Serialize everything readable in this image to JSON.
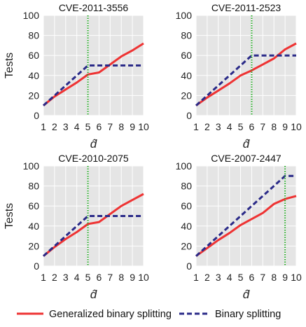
{
  "legend": {
    "placement": "bottom",
    "entries": [
      {
        "label": "Generalized binary splitting",
        "color": "#ee3333",
        "style": "solid"
      },
      {
        "label": "Binary splitting",
        "color": "#2a2a88",
        "style": "dashed"
      }
    ]
  },
  "colors": {
    "plot_background": "#e5e5e5",
    "grid": "#ffffff",
    "vline": "#22aa22"
  },
  "chart_data": [
    {
      "type": "line",
      "title": "CVE-2011-3556",
      "xlabel": "d̂",
      "ylabel": "Tests",
      "x": [
        1,
        2,
        3,
        4,
        5,
        6,
        7,
        8,
        9,
        10
      ],
      "xlim": [
        1,
        10
      ],
      "ylim": [
        0,
        100
      ],
      "yticks": [
        0,
        20,
        40,
        60,
        80,
        100
      ],
      "grid": true,
      "vline_x": 5,
      "series": [
        {
          "name": "Generalized binary splitting",
          "values": [
            10,
            19,
            26,
            33,
            41,
            43,
            51,
            59,
            65,
            72
          ]
        },
        {
          "name": "Binary splitting",
          "values": [
            10,
            20,
            30,
            40,
            50,
            50,
            50,
            50,
            50,
            50
          ]
        }
      ]
    },
    {
      "type": "line",
      "title": "CVE-2011-2523",
      "xlabel": "d̂",
      "ylabel": "",
      "x": [
        1,
        2,
        3,
        4,
        5,
        6,
        7,
        8,
        9,
        10
      ],
      "xlim": [
        1,
        10
      ],
      "ylim": [
        0,
        100
      ],
      "yticks": [
        0,
        20,
        40,
        60,
        80,
        100
      ],
      "grid": true,
      "vline_x": 6,
      "series": [
        {
          "name": "Generalized binary splitting",
          "values": [
            10,
            18,
            25,
            32,
            40,
            45,
            51,
            57,
            66,
            72
          ]
        },
        {
          "name": "Binary splitting",
          "values": [
            10,
            20,
            30,
            40,
            50,
            60,
            60,
            60,
            60,
            60
          ]
        }
      ]
    },
    {
      "type": "line",
      "title": "CVE-2010-2075",
      "xlabel": "d̂",
      "ylabel": "Tests",
      "x": [
        1,
        2,
        3,
        4,
        5,
        6,
        7,
        8,
        9,
        10
      ],
      "xlim": [
        1,
        10
      ],
      "ylim": [
        0,
        100
      ],
      "yticks": [
        0,
        20,
        40,
        60,
        80,
        100
      ],
      "grid": true,
      "vline_x": 5,
      "series": [
        {
          "name": "Generalized binary splitting",
          "values": [
            10,
            19,
            27,
            34,
            42,
            44,
            52,
            60,
            66,
            72
          ]
        },
        {
          "name": "Binary splitting",
          "values": [
            10,
            20,
            30,
            40,
            50,
            50,
            50,
            50,
            50,
            50
          ]
        }
      ]
    },
    {
      "type": "line",
      "title": "CVE-2007-2447",
      "xlabel": "d̂",
      "ylabel": "",
      "x": [
        1,
        2,
        3,
        4,
        5,
        6,
        7,
        8,
        9,
        10
      ],
      "xlim": [
        1,
        10
      ],
      "ylim": [
        0,
        100
      ],
      "yticks": [
        0,
        20,
        40,
        60,
        80,
        100
      ],
      "grid": true,
      "vline_x": 9,
      "series": [
        {
          "name": "Generalized binary splitting",
          "values": [
            10,
            18,
            26,
            33,
            41,
            47,
            53,
            62,
            67,
            70
          ]
        },
        {
          "name": "Binary splitting",
          "values": [
            10,
            20,
            30,
            40,
            50,
            60,
            70,
            80,
            90,
            90
          ]
        }
      ]
    }
  ]
}
